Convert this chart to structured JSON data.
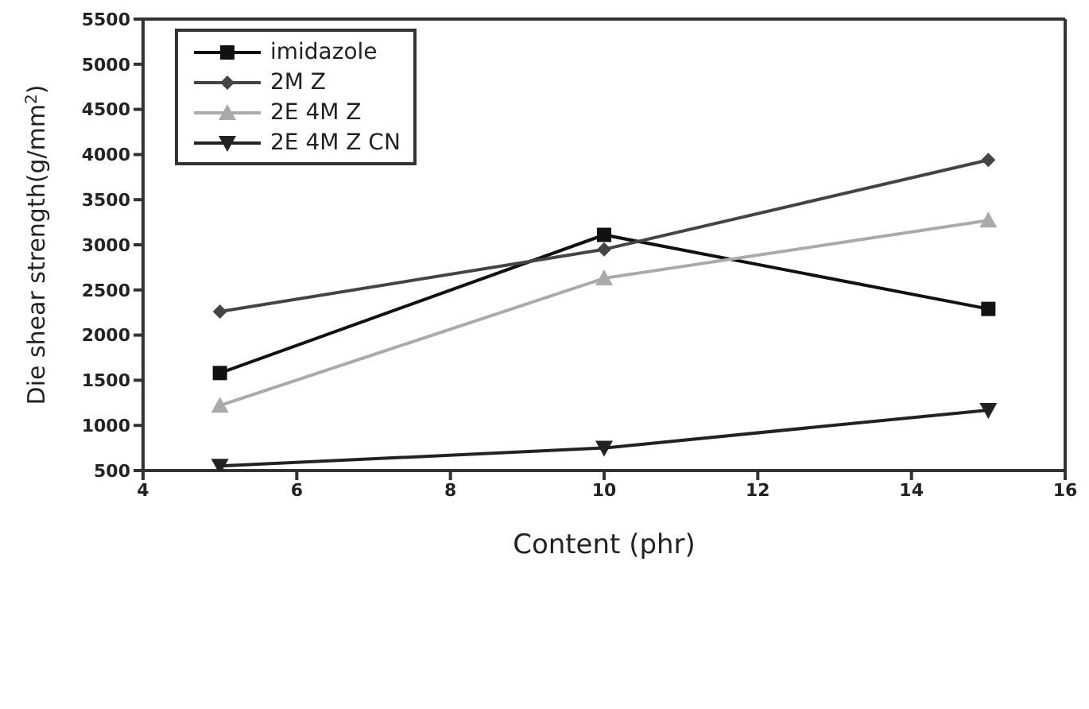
{
  "chart_data": {
    "type": "line",
    "xlabel": "Content (phr)",
    "ylabel": "Die shear strength(g/mm$^{2}$)",
    "x": [
      5,
      10,
      15
    ],
    "series": [
      {
        "name": "imidazole",
        "color": "#111111",
        "marker": "square",
        "values": [
          1580,
          3110,
          2290
        ]
      },
      {
        "name": "2M Z",
        "color": "#444444",
        "marker": "diamond",
        "values": [
          2260,
          2950,
          3940
        ]
      },
      {
        "name": "2E 4M Z",
        "color": "#aaaaaa",
        "marker": "triangle",
        "values": [
          1220,
          2630,
          3270
        ]
      },
      {
        "name": "2E 4M Z CN",
        "color": "#222222",
        "marker": "triangle-down",
        "values": [
          550,
          750,
          1170
        ]
      }
    ],
    "xlim": [
      4,
      16
    ],
    "xticks": [
      4,
      6,
      8,
      10,
      12,
      14,
      16
    ],
    "ylim": [
      500,
      5500
    ],
    "yticks": [
      500,
      1000,
      1500,
      2000,
      2500,
      3000,
      3500,
      4000,
      4500,
      5000,
      5500
    ],
    "grid": false,
    "legend": "top left",
    "line_style": "solid"
  }
}
